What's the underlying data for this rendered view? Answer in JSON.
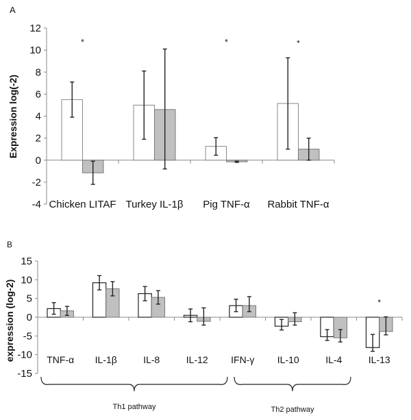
{
  "chart_data": [
    {
      "type": "bar",
      "panel_label": "A",
      "title": "",
      "xlabel": "",
      "ylabel": "Expression log(-2)",
      "ylim": [
        -4,
        12
      ],
      "yticks": [
        12,
        10,
        8,
        6,
        4,
        2,
        0,
        -2,
        -4
      ],
      "grid": false,
      "categories": [
        "Chicken LITAF",
        "Turkey IL-1β",
        "Pig TNF-α",
        "Rabbit TNF-α"
      ],
      "series": [
        {
          "name": "series-1",
          "color": "#ffffff",
          "values": [
            5.5,
            5.0,
            1.25,
            5.15
          ],
          "err_low": [
            3.9,
            1.9,
            0.45,
            1.0
          ],
          "err_high": [
            7.1,
            8.1,
            2.05,
            9.3
          ]
        },
        {
          "name": "series-2",
          "color": "#c0c0c0",
          "values": [
            -1.15,
            4.6,
            -0.15,
            1.0
          ],
          "err_low": [
            -2.2,
            -0.8,
            -0.2,
            0.0
          ],
          "err_high": [
            -0.1,
            10.1,
            -0.1,
            2.0
          ]
        }
      ],
      "annotations": [
        {
          "category": "Chicken LITAF",
          "text": "*",
          "y": 10.8
        },
        {
          "category": "Pig TNF-α",
          "text": "*",
          "y": 10.8
        },
        {
          "category": "Rabbit TNF-α",
          "text": "*",
          "y": 10.7
        }
      ]
    },
    {
      "type": "bar",
      "panel_label": "B",
      "title": "",
      "xlabel": "",
      "ylabel": "expression (log-2)",
      "ylim": [
        -15,
        15
      ],
      "yticks": [
        15,
        10,
        5,
        0,
        -5,
        -10,
        -15
      ],
      "grid": false,
      "categories": [
        "TNF-α",
        "IL-1β",
        "IL-8",
        "IL-12",
        "IFN-γ",
        "IL-10",
        "IL-4",
        "IL-13"
      ],
      "series": [
        {
          "name": "series-1",
          "color": "#ffffff",
          "values": [
            2.3,
            9.2,
            6.3,
            0.5,
            3.1,
            -2.4,
            -5.2,
            -8.1
          ],
          "err_low": [
            0.8,
            7.3,
            4.4,
            -1.2,
            1.5,
            -3.4,
            -6.2,
            -9.1
          ],
          "err_high": [
            3.9,
            11.1,
            8.2,
            2.2,
            4.8,
            -0.6,
            -3.3,
            -4.6
          ]
        },
        {
          "name": "series-2",
          "color": "#c0c0c0",
          "values": [
            1.7,
            7.6,
            5.3,
            -1.1,
            3.1,
            -1.2,
            -5.5,
            -3.8
          ],
          "err_low": [
            0.5,
            5.7,
            3.5,
            -2.1,
            1.5,
            -2.1,
            -6.6,
            -4.7
          ],
          "err_high": [
            2.9,
            9.5,
            7.1,
            2.5,
            5.5,
            1.2,
            -3.3,
            0.1
          ]
        }
      ],
      "annotations": [
        {
          "category": "IL-13",
          "text": "*",
          "y": 4.1
        }
      ],
      "groups": [
        {
          "label": "Th1 pathway",
          "categories": [
            "TNF-α",
            "IL-1β",
            "IL-8",
            "IL-12",
            "IFN-γ"
          ]
        },
        {
          "label": "Th2 pathway",
          "categories": [
            "IL-10",
            "IL-4",
            "IL-13"
          ]
        }
      ]
    }
  ]
}
